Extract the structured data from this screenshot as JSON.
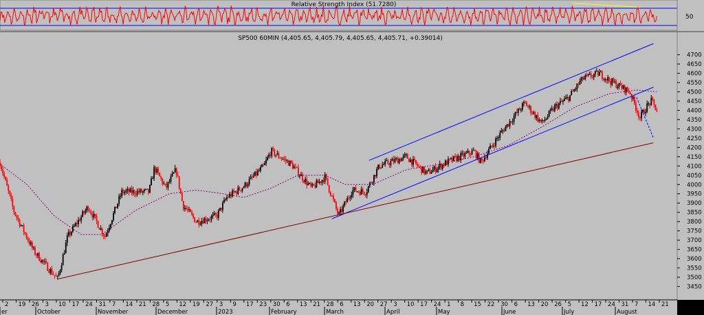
{
  "chart_data": [
    {
      "type": "line",
      "title": "Relative Strength Index (51.7280)",
      "ytick_labels": [
        "50"
      ],
      "reference_levels": [
        70,
        30
      ],
      "ylim": [
        15,
        85
      ],
      "series": [
        {
          "color": "#ff0000",
          "style": "oscillator"
        }
      ],
      "annotations": [
        {
          "type": "trendline",
          "color": "#ffff00",
          "x": [
            0.845,
            0.945
          ],
          "y": [
            82,
            72
          ]
        }
      ]
    },
    {
      "type": "candlestick",
      "title": "SP500 60MIN (4,405.65, 4,405.79, 4,405.65, 4,405.71, +0.39014)",
      "ylim": [
        3400,
        4780
      ],
      "ytick_labels": [
        "4700",
        "4650",
        "4600",
        "4550",
        "4500",
        "4450",
        "4400",
        "4350",
        "4300",
        "4250",
        "4200",
        "4150",
        "4100",
        "4050",
        "4000",
        "3950",
        "3900",
        "3850",
        "3800",
        "3750",
        "3700",
        "3650",
        "3600",
        "3550",
        "3500",
        "3450"
      ],
      "xtick_labels": [
        "2",
        "19",
        "26",
        "3",
        "10",
        "17",
        "24",
        "31",
        "7",
        "14",
        "21",
        "28",
        "5",
        "12",
        "19",
        "27",
        "3",
        "9",
        "17",
        "23",
        "30",
        "6",
        "13",
        "21",
        "28",
        "6",
        "13",
        "20",
        "27",
        "3",
        "10",
        "17",
        "24",
        "1",
        "8",
        "15",
        "22",
        "30",
        "6",
        "13",
        "20",
        "26",
        "5",
        "12",
        "17",
        "24",
        "31",
        "7",
        "14",
        "21"
      ],
      "month_labels": [
        "er",
        "October",
        "November",
        "December",
        "2023",
        "February",
        "March",
        "April",
        "May",
        "June",
        "July",
        "August"
      ],
      "key_prices": [
        {
          "x": 0.0,
          "y": 4120
        },
        {
          "x": 0.02,
          "y": 3860
        },
        {
          "x": 0.05,
          "y": 3640
        },
        {
          "x": 0.085,
          "y": 3490
        },
        {
          "x": 0.1,
          "y": 3720
        },
        {
          "x": 0.13,
          "y": 3880
        },
        {
          "x": 0.155,
          "y": 3720
        },
        {
          "x": 0.18,
          "y": 3960
        },
        {
          "x": 0.22,
          "y": 3960
        },
        {
          "x": 0.228,
          "y": 4090
        },
        {
          "x": 0.245,
          "y": 3980
        },
        {
          "x": 0.26,
          "y": 4080
        },
        {
          "x": 0.27,
          "y": 3890
        },
        {
          "x": 0.29,
          "y": 3800
        },
        {
          "x": 0.32,
          "y": 3830
        },
        {
          "x": 0.335,
          "y": 3930
        },
        {
          "x": 0.36,
          "y": 3990
        },
        {
          "x": 0.39,
          "y": 4100
        },
        {
          "x": 0.4,
          "y": 4180
        },
        {
          "x": 0.43,
          "y": 4110
        },
        {
          "x": 0.46,
          "y": 3980
        },
        {
          "x": 0.48,
          "y": 4040
        },
        {
          "x": 0.5,
          "y": 3830
        },
        {
          "x": 0.52,
          "y": 3970
        },
        {
          "x": 0.54,
          "y": 3960
        },
        {
          "x": 0.56,
          "y": 4100
        },
        {
          "x": 0.6,
          "y": 4150
        },
        {
          "x": 0.63,
          "y": 4060
        },
        {
          "x": 0.66,
          "y": 4120
        },
        {
          "x": 0.7,
          "y": 4180
        },
        {
          "x": 0.71,
          "y": 4120
        },
        {
          "x": 0.74,
          "y": 4280
        },
        {
          "x": 0.775,
          "y": 4440
        },
        {
          "x": 0.8,
          "y": 4330
        },
        {
          "x": 0.82,
          "y": 4420
        },
        {
          "x": 0.84,
          "y": 4470
        },
        {
          "x": 0.86,
          "y": 4570
        },
        {
          "x": 0.885,
          "y": 4600
        },
        {
          "x": 0.9,
          "y": 4560
        },
        {
          "x": 0.93,
          "y": 4500
        },
        {
          "x": 0.945,
          "y": 4360
        },
        {
          "x": 0.955,
          "y": 4420
        },
        {
          "x": 0.962,
          "y": 4450
        },
        {
          "x": 0.97,
          "y": 4400
        }
      ],
      "moving_average": [
        {
          "x": 0.0,
          "y": 4110
        },
        {
          "x": 0.04,
          "y": 4000
        },
        {
          "x": 0.08,
          "y": 3830
        },
        {
          "x": 0.12,
          "y": 3730
        },
        {
          "x": 0.15,
          "y": 3730
        },
        {
          "x": 0.2,
          "y": 3860
        },
        {
          "x": 0.25,
          "y": 3950
        },
        {
          "x": 0.29,
          "y": 3970
        },
        {
          "x": 0.33,
          "y": 3950
        },
        {
          "x": 0.36,
          "y": 3930
        },
        {
          "x": 0.4,
          "y": 3980
        },
        {
          "x": 0.44,
          "y": 4050
        },
        {
          "x": 0.48,
          "y": 4050
        },
        {
          "x": 0.51,
          "y": 4000
        },
        {
          "x": 0.55,
          "y": 4000
        },
        {
          "x": 0.6,
          "y": 4080
        },
        {
          "x": 0.65,
          "y": 4110
        },
        {
          "x": 0.7,
          "y": 4150
        },
        {
          "x": 0.75,
          "y": 4210
        },
        {
          "x": 0.8,
          "y": 4310
        },
        {
          "x": 0.85,
          "y": 4420
        },
        {
          "x": 0.9,
          "y": 4490
        },
        {
          "x": 0.94,
          "y": 4510
        },
        {
          "x": 0.97,
          "y": 4500
        }
      ],
      "annotations": [
        {
          "type": "trendline",
          "color": "#0000ff",
          "x": [
            0.545,
            0.965
          ],
          "y": [
            4130,
            4760
          ]
        },
        {
          "type": "trendline",
          "color": "#0000ff",
          "x": [
            0.49,
            0.965
          ],
          "y": [
            3815,
            4525
          ]
        },
        {
          "type": "trendline",
          "color": "#800000",
          "x": [
            0.085,
            0.965
          ],
          "y": [
            3490,
            4225
          ]
        },
        {
          "type": "trendline",
          "color": "#0000ff",
          "style": "dashed",
          "x": [
            0.94,
            0.965
          ],
          "y": [
            4470,
            4250
          ]
        }
      ]
    }
  ]
}
